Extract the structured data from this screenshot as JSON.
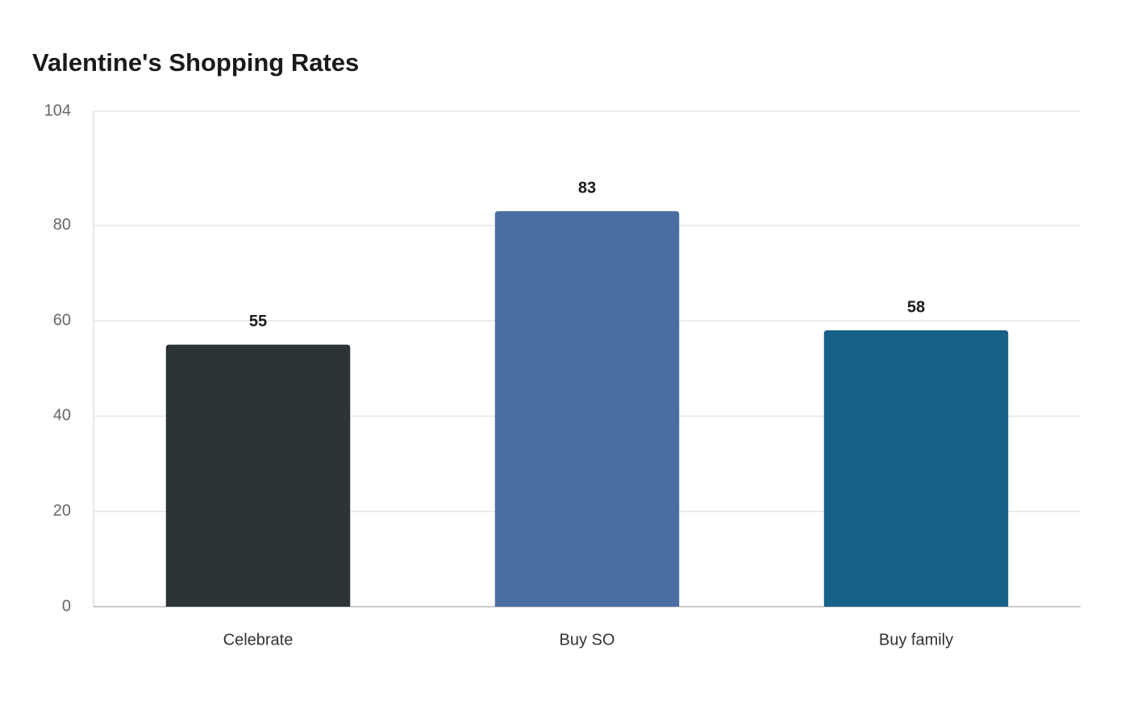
{
  "chart_data": {
    "type": "bar",
    "title": "Valentine's Shopping Rates",
    "categories": [
      "Celebrate",
      "Buy SO",
      "Buy family"
    ],
    "values": [
      55,
      83,
      58
    ],
    "colors": [
      "#2d3436",
      "#4a6ea1",
      "#176087"
    ],
    "ylim": [
      0,
      104
    ],
    "yticks": [
      0,
      20,
      40,
      60,
      80,
      104
    ],
    "grid": true
  }
}
